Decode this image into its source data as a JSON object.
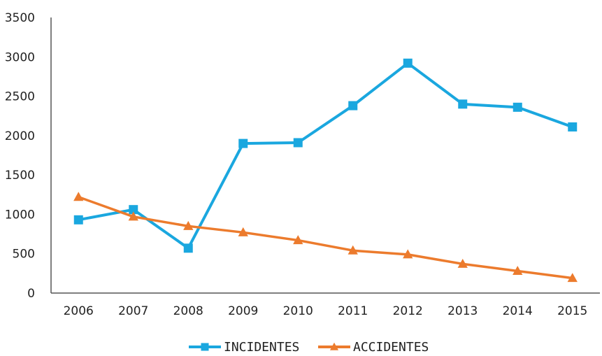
{
  "chart_data": {
    "type": "line",
    "x": [
      "2006",
      "2007",
      "2008",
      "2009",
      "2010",
      "2011",
      "2012",
      "2013",
      "2014",
      "2015"
    ],
    "series": [
      {
        "name": "INCIDENTES",
        "values": [
          930,
          1060,
          570,
          1900,
          1910,
          2380,
          2920,
          2400,
          2360,
          2110
        ],
        "color": "#1aa7df",
        "marker": "square"
      },
      {
        "name": "ACCIDENTES",
        "values": [
          1220,
          970,
          850,
          770,
          670,
          540,
          490,
          370,
          280,
          190
        ],
        "color": "#ec7b2d",
        "marker": "triangle"
      }
    ],
    "yticks": [
      "0",
      "500",
      "1000",
      "1500",
      "2000",
      "2500",
      "3000",
      "3500"
    ],
    "ylim": [
      0,
      3500
    ],
    "grid": false,
    "legend_position": "bottom"
  }
}
